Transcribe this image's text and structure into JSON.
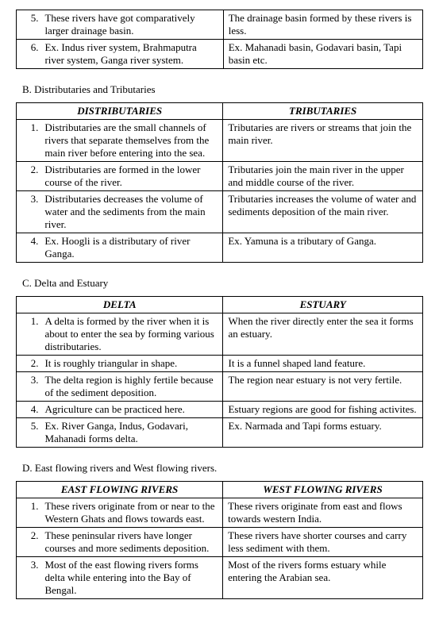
{
  "table1": {
    "rows": [
      {
        "n": "5.",
        "l": "These rivers have got comparatively larger drainage basin.",
        "r": "The drainage basin formed by these rivers is less."
      },
      {
        "n": "6.",
        "l": "Ex. Indus river system, Brahmaputra river system, Ganga river system.",
        "r": "Ex. Mahanadi basin, Godavari basin, Tapi basin etc."
      }
    ]
  },
  "sectionB": {
    "title": "B. Distributaries and Tributaries",
    "header_left": "DISTRIBUTARIES",
    "header_right": "TRIBUTARIES",
    "rows": [
      {
        "n": "1.",
        "l": "Distributaries are the small channels of rivers that separate themselves from the main river before entering into the sea.",
        "r": "Tributaries are rivers or streams that join the main river."
      },
      {
        "n": "2.",
        "l": "Distributaries are formed in the lower course of the river.",
        "r": "Tributaries join the main river in the upper and middle course of the river."
      },
      {
        "n": "3.",
        "l": "Distributaries decreases the volume of water and the sediments from the main river.",
        "r": "Tributaries increases the volume of water and sediments deposition of the main river."
      },
      {
        "n": "4.",
        "l": "Ex. Hoogli is a distributary of river Ganga.",
        "r": "Ex. Yamuna is a tributary of Ganga."
      }
    ]
  },
  "sectionC": {
    "title": "C. Delta and Estuary",
    "header_left": "DELTA",
    "header_right": "ESTUARY",
    "rows": [
      {
        "n": "1.",
        "l": "A delta is formed by the river when it is about to enter the sea by forming various distributaries.",
        "r": "When the river directly enter the sea it forms an estuary."
      },
      {
        "n": "2.",
        "l": "It is roughly triangular in shape.",
        "r": "It is a funnel shaped land feature."
      },
      {
        "n": "3.",
        "l": "The delta region is highly fertile because of the sediment deposition.",
        "r": "The region near estuary is not very fertile."
      },
      {
        "n": "4.",
        "l": "Agriculture can be practiced here.",
        "r": "Estuary regions are good for fishing activites."
      },
      {
        "n": "5.",
        "l": "Ex. River Ganga, Indus, Godavari, Mahanadi forms delta.",
        "r": "Ex. Narmada and Tapi forms estuary."
      }
    ]
  },
  "sectionD": {
    "title": "D. East flowing rivers and West flowing rivers.",
    "header_left": "EAST FLOWING RIVERS",
    "header_right": "WEST FLOWING RIVERS",
    "rows": [
      {
        "n": "1.",
        "l": "These rivers originate from or near to the Western Ghats and flows towards east.",
        "r": "These rivers originate from east and flows towards western India."
      },
      {
        "n": "2.",
        "l": "These peninsular rivers have longer courses and more sediments deposition.",
        "r": "These rivers have shorter courses and carry less sediment with them."
      },
      {
        "n": "3.",
        "l": "Most of the east flowing rivers forms delta while entering into the Bay of Bengal.",
        "r": "Most of the rivers forms estuary while entering the Arabian sea."
      }
    ]
  }
}
